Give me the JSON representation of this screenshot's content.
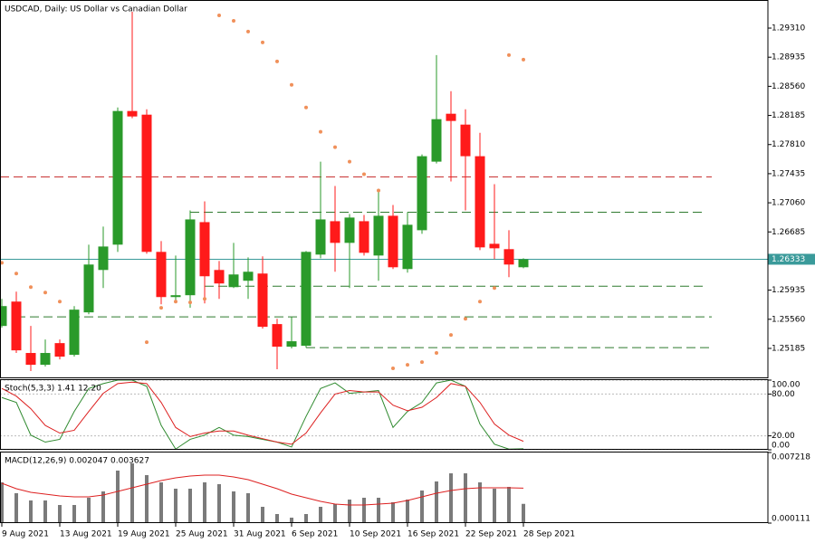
{
  "chart_data": [
    {
      "type": "candlestick",
      "title": "USDCAD, Daily:  US Dollar vs Canadian Dollar",
      "categories": [
        "9 Aug 2021",
        null,
        null,
        null,
        "13 Aug 2021",
        null,
        null,
        null,
        "19 Aug 2021",
        null,
        null,
        null,
        "25 Aug 2021",
        null,
        null,
        null,
        "31 Aug 2021",
        null,
        null,
        null,
        "6 Sep 2021",
        null,
        null,
        null,
        "10 Sep 2021",
        null,
        null,
        null,
        "16 Sep 2021",
        null,
        null,
        null,
        "22 Sep 2021",
        null,
        null,
        null,
        "28 Sep 2021"
      ],
      "open": [
        1.25474,
        1.25788,
        1.25126,
        1.24974,
        1.25253,
        1.25102,
        1.25649,
        1.26195,
        1.26521,
        1.28242,
        1.28195,
        1.26428,
        1.25846,
        1.2587,
        1.26811,
        1.26195,
        1.25974,
        1.26056,
        1.26149,
        1.25498,
        1.25207,
        1.25219,
        1.26393,
        1.26823,
        1.26544,
        1.26823,
        1.26381,
        1.26893,
        1.26207,
        1.26707,
        1.2759,
        1.28207,
        1.28067,
        1.2766,
        1.26532,
        1.26463,
        1.2623
      ],
      "high": [
        1.25823,
        1.25916,
        1.25474,
        1.253,
        1.253,
        1.2573,
        1.26521,
        1.26753,
        1.28288,
        1.2952,
        1.28265,
        1.26567,
        1.26381,
        1.26962,
        1.27079,
        1.26311,
        1.26544,
        1.26358,
        1.2637,
        1.25567,
        1.25591,
        1.26439,
        1.2759,
        1.27276,
        1.26916,
        1.26904,
        1.27242,
        1.27032,
        1.26939,
        1.27683,
        1.28962,
        1.28497,
        1.28265,
        1.27962,
        1.273,
        1.26707,
        1.26346
      ],
      "low": [
        1.25451,
        1.25126,
        1.24893,
        1.24951,
        1.25044,
        1.25079,
        1.25625,
        1.25963,
        1.26428,
        1.28149,
        1.26404,
        1.25753,
        1.25788,
        1.25707,
        1.25765,
        1.25823,
        1.25963,
        1.25823,
        1.25439,
        1.24916,
        1.25184,
        1.25195,
        1.26346,
        1.26172,
        1.25963,
        1.26381,
        1.26056,
        1.26207,
        1.2616,
        1.2666,
        1.27567,
        1.27335,
        1.26962,
        1.26451,
        1.26335,
        1.26102,
        1.26218
      ],
      "close": [
        1.2573,
        1.2516,
        1.24974,
        1.25126,
        1.25079,
        1.25684,
        1.26265,
        1.26497,
        1.28242,
        1.28172,
        1.26428,
        1.25846,
        1.2587,
        1.26846,
        1.26114,
        1.26021,
        1.26137,
        1.26172,
        1.25463,
        1.25207,
        1.25277,
        1.26428,
        1.26846,
        1.26544,
        1.2687,
        1.26416,
        1.26893,
        1.2623,
        1.26777,
        1.2766,
        1.28137,
        1.28114,
        1.2766,
        1.26486,
        1.26474,
        1.26265,
        1.26333
      ],
      "up_color": "#2a9a2a",
      "down_color": "#ff1a1a",
      "ylim": [
        1.248,
        1.2966
      ],
      "yticks": [
        {
          "value": 1.2931,
          "label": "1.29310"
        },
        1.28935,
        {
          "value": 1.2856,
          "label": "1.28560"
        },
        1.28185,
        {
          "value": 1.2781,
          "label": "1.27810"
        },
        1.27435,
        {
          "value": 1.2706,
          "label": "1.27060"
        },
        1.26685,
        1.25935,
        {
          "value": 1.2556,
          "label": "1.25560"
        },
        1.25185
      ],
      "last_price": 1.26333,
      "last_color": "#3a9a9a",
      "sar": {
        "color": "#f0905a",
        "values": [
          1.26288,
          1.26149,
          1.25974,
          1.25904,
          1.25788,
          null,
          null,
          null,
          null,
          null,
          1.25265,
          1.25707,
          1.25788,
          1.25777,
          1.25823,
          1.29474,
          1.29404,
          1.29265,
          1.29125,
          1.28881,
          1.28579,
          1.28288,
          1.27974,
          1.27776,
          1.2759,
          1.27428,
          1.27218,
          1.24928,
          1.24974,
          1.25009,
          1.25126,
          1.25358,
          1.25567,
          1.25788,
          1.25963,
          1.28962,
          1.28904
        ]
      },
      "levels": [
        {
          "value": 1.27393,
          "color": "#c83232"
        },
        {
          "value": 1.26939,
          "color": "#2f7a2f"
        },
        {
          "value": 1.25986,
          "color": "#2f7a2f"
        },
        {
          "value": 1.25591,
          "color": "#2f7a2f"
        },
        {
          "value": 1.25195,
          "color": "#2f7a2f"
        }
      ]
    },
    {
      "type": "line",
      "title": "Stoch(5,3,3) 1.41 12.20",
      "ylim": [
        0,
        100
      ],
      "yticks": [
        {
          "value": 100,
          "label": "100.00"
        },
        {
          "value": 80,
          "label": "80.00"
        },
        {
          "value": 20,
          "label": "20.00"
        },
        {
          "value": 0,
          "label": "0.00"
        }
      ],
      "series": [
        {
          "color": "#2f8a2f",
          "values": [
            75,
            68,
            21,
            11,
            15,
            55,
            88,
            95,
            100,
            100,
            91,
            35,
            1,
            15,
            21,
            32,
            21,
            19,
            15,
            11,
            4,
            48,
            88,
            96,
            81,
            83,
            85,
            32,
            55,
            68,
            96,
            100,
            91,
            37,
            8,
            1,
            1.41
          ]
        },
        {
          "color": "#dd2020",
          "values": [
            88,
            77,
            59,
            35,
            24,
            28,
            55,
            81,
            95,
            97,
            95,
            68,
            32,
            19,
            24,
            27,
            27,
            21,
            16,
            11,
            8,
            24,
            53,
            80,
            85,
            83,
            83,
            64,
            56,
            61,
            75,
            95,
            91,
            68,
            37,
            21,
            12.2
          ]
        }
      ]
    },
    {
      "type": "macd",
      "title": "MACD(12,26,9) 0.002047 0.003627",
      "ylim": [
        0.000111,
        0.007218
      ],
      "yticks": [
        0.007218,
        0.000111
      ],
      "color": "#7a7a7a",
      "values": [
        0.004211,
        0.003118,
        0.002389,
        0.002389,
        0.001933,
        0.001933,
        0.002662,
        0.0033,
        0.005396,
        0.006125,
        0.00494,
        0.004211,
        0.003574,
        0.003574,
        0.004211,
        0.004029,
        0.0033,
        0.003118,
        0.001751,
        0.001022,
        0.000658,
        0.001022,
        0.001751,
        0.002025,
        0.00248,
        0.002662,
        0.002662,
        0.002207,
        0.00248,
        0.003391,
        0.004303,
        0.005123,
        0.005123,
        0.004211,
        0.003574,
        0.003756,
        0.002047
      ],
      "signal": {
        "color": "#dd2020",
        "values": [
          0.00412,
          0.003574,
          0.003209,
          0.003027,
          0.002845,
          0.002753,
          0.002753,
          0.002936,
          0.0033,
          0.003665,
          0.004029,
          0.004394,
          0.004667,
          0.004849,
          0.00494,
          0.00494,
          0.004758,
          0.004485,
          0.004029,
          0.003574,
          0.003027,
          0.002662,
          0.002298,
          0.002025,
          0.001933,
          0.001933,
          0.002025,
          0.002116,
          0.002389,
          0.002753,
          0.003118,
          0.003391,
          0.003574,
          0.003665,
          0.003665,
          0.003665,
          0.003627
        ]
      }
    }
  ]
}
